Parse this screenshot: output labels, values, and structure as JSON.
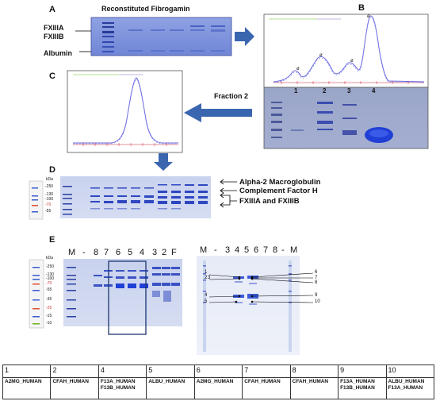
{
  "panels": {
    "A": {
      "letter": "A",
      "title": "Reconstituted Fibrogamin",
      "labels": [
        "FXIIIA",
        "FXIIIB",
        "Albumin"
      ]
    },
    "B": {
      "letter": "B",
      "peak_labels": [
        "1",
        "2",
        "3",
        "4"
      ],
      "lane_labels": [
        "1",
        "2",
        "3",
        "4"
      ]
    },
    "C": {
      "letter": "C",
      "fraction_label": "Fraction 2"
    },
    "D": {
      "letter": "D",
      "ladder_unit": "kDa",
      "ladder_marks": [
        "-250",
        "-130",
        "-100",
        "-70",
        "-55"
      ],
      "annotations": [
        "Alpha-2 Macroglobulin",
        "Complement Factor H",
        "FXIIIA and FXIIIB"
      ]
    },
    "E": {
      "letter": "E",
      "ladder_unit": "kDa",
      "ladder_marks": [
        "-250",
        "-130",
        "-100",
        "-70",
        "-55",
        "-35",
        "-25",
        "-15",
        "-10"
      ],
      "left_lane_labels": [
        "M",
        "-",
        "8",
        "7",
        "6",
        "5",
        "4",
        "3",
        "2",
        "F"
      ],
      "right_lane_labels": [
        "M",
        "-",
        "3",
        "4",
        "5",
        "6",
        "7",
        "8",
        "-",
        "M"
      ],
      "spot_labels_left": [
        "1",
        "2",
        "3",
        "4",
        "5"
      ],
      "spot_labels_right": [
        "6",
        "7",
        "8",
        "9",
        "10"
      ]
    }
  },
  "table": {
    "columns": [
      {
        "num": "1",
        "proteins": [
          "A2MG_HUMAN"
        ]
      },
      {
        "num": "2",
        "proteins": [
          "CFAH_HUMAN"
        ]
      },
      {
        "num": "4",
        "proteins": [
          "F13A_HUMAN",
          "F13B_HUMAN"
        ]
      },
      {
        "num": "5",
        "proteins": [
          "ALBU_HUMAN"
        ]
      },
      {
        "num": "6",
        "proteins": [
          "A2MG_HUMAN"
        ]
      },
      {
        "num": "7",
        "proteins": [
          "CFAH_HUMAN"
        ]
      },
      {
        "num": "8",
        "proteins": [
          "CFAH_HUMAN"
        ]
      },
      {
        "num": "9",
        "proteins": [
          "F13A_HUMAN",
          "F13B_HUMAN"
        ]
      },
      {
        "num": "10",
        "proteins": [
          "ALBU_HUMAN",
          "F13A_HUMAN"
        ]
      }
    ]
  },
  "colors": {
    "gel_blue": "#6c86d8",
    "band_dark": "#2a48c8",
    "arrow_blue": "#3a66b0",
    "trace_blue": "#6a6ae0"
  }
}
